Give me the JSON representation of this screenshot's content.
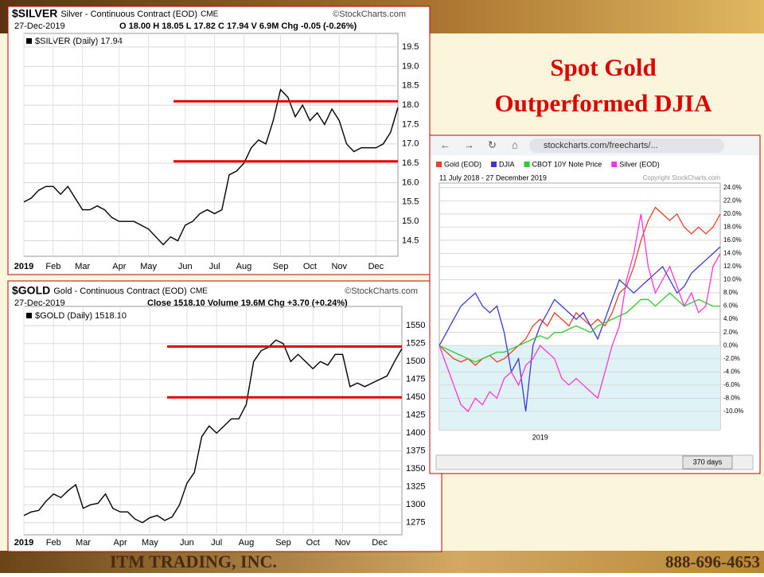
{
  "slide": {
    "title_lines": [
      "Spot Gold",
      "Outperformed  DJIA"
    ],
    "company": "ITM TRADING, INC.",
    "phone": "888-696-4653"
  },
  "chart_data": [
    {
      "type": "line",
      "title": "$SILVER",
      "subtitle": "Silver - Continuous Contract (EOD)",
      "exchange": "CME",
      "source": "©StockCharts.com",
      "date": "27-Dec-2019",
      "quote": "O 18.00  H 18.05  L 17.82  C 17.94  V 6.9M  Chg -0.05 (-0.26%)",
      "categories": [
        "2019",
        null,
        null,
        null,
        "Feb",
        null,
        null,
        null,
        "Mar",
        null,
        null,
        null,
        null,
        "Apr",
        null,
        null,
        null,
        "May",
        null,
        null,
        null,
        null,
        "Jun",
        null,
        null,
        null,
        "Jul",
        null,
        null,
        null,
        "Aug",
        null,
        null,
        null,
        null,
        "Sep",
        null,
        null,
        null,
        "Oct",
        null,
        null,
        null,
        "Nov",
        null,
        null,
        null,
        null,
        "Dec",
        null,
        null,
        null
      ],
      "series": [
        {
          "name": "$SILVER (Daily) 17.94",
          "color": "#000000",
          "values": [
            15.5,
            15.6,
            15.8,
            15.9,
            15.9,
            15.7,
            15.9,
            15.6,
            15.3,
            15.3,
            15.4,
            15.3,
            15.1,
            15.0,
            15.0,
            15.0,
            14.9,
            14.8,
            14.6,
            14.4,
            14.6,
            14.5,
            14.9,
            15.0,
            15.2,
            15.3,
            15.2,
            15.3,
            16.2,
            16.3,
            16.5,
            16.9,
            17.1,
            17.0,
            17.6,
            18.4,
            18.2,
            17.7,
            18.0,
            17.6,
            17.8,
            17.5,
            17.9,
            17.6,
            17.0,
            16.8,
            16.9,
            16.9,
            16.9,
            17.0,
            17.3,
            17.94
          ]
        }
      ],
      "ylim": [
        14.1,
        19.85
      ],
      "yticks": [
        14.5,
        {
          "value": 15,
          "label": "15.0"
        },
        15.5,
        {
          "value": 16,
          "label": "16.0"
        },
        16.5,
        {
          "value": 17,
          "label": "17.0"
        },
        17.5,
        {
          "value": 18,
          "label": "18.0"
        },
        18.5,
        {
          "value": 19,
          "label": "19.0"
        },
        19.5
      ],
      "grid": true,
      "hlines": [
        {
          "value": 18.1,
          "color": "#e00000"
        },
        {
          "value": 16.55,
          "color": "#e00000"
        }
      ]
    },
    {
      "type": "line",
      "title": "$GOLD",
      "subtitle": "Gold - Continuous Contract (EOD)",
      "exchange": "CME",
      "source": "©StockCharts.com",
      "date": "27-Dec-2019",
      "quote": "Close 1518.10  Volume 19.6M  Chg +3.70 (+0.24%)",
      "categories": [
        "2019",
        null,
        null,
        null,
        "Feb",
        null,
        null,
        null,
        "Mar",
        null,
        null,
        null,
        null,
        "Apr",
        null,
        null,
        null,
        "May",
        null,
        null,
        null,
        null,
        "Jun",
        null,
        null,
        null,
        "Jul",
        null,
        null,
        null,
        "Aug",
        null,
        null,
        null,
        null,
        "Sep",
        null,
        null,
        null,
        "Oct",
        null,
        null,
        null,
        "Nov",
        null,
        null,
        null,
        null,
        "Dec",
        null,
        null,
        null
      ],
      "series": [
        {
          "name": "$GOLD (Daily) 1518.10",
          "color": "#000000",
          "values": [
            1285,
            1290,
            1292,
            1305,
            1315,
            1310,
            1320,
            1328,
            1295,
            1300,
            1302,
            1315,
            1295,
            1290,
            1290,
            1280,
            1275,
            1282,
            1285,
            1278,
            1283,
            1300,
            1330,
            1345,
            1395,
            1410,
            1400,
            1410,
            1420,
            1420,
            1440,
            1500,
            1515,
            1520,
            1530,
            1525,
            1500,
            1510,
            1500,
            1490,
            1500,
            1495,
            1510,
            1510,
            1465,
            1470,
            1465,
            1470,
            1475,
            1480,
            1500,
            1518.1
          ]
        }
      ],
      "ylim": [
        1258,
        1577
      ],
      "yticks": [
        1275,
        1300,
        1325,
        1350,
        1375,
        1400,
        1425,
        1450,
        1475,
        1500,
        1525,
        1550
      ],
      "grid": true,
      "hlines": [
        {
          "value": 1521,
          "color": "#e00000"
        },
        {
          "value": 1450,
          "color": "#e00000"
        }
      ]
    },
    {
      "type": "line",
      "url": "stockcharts.com/freecharts/...",
      "date_range": "11 July 2018 - 27 December 2019",
      "copyright": "Copyright StockCharts.com",
      "range_button": "370 days",
      "categories": [
        null,
        null,
        null,
        null,
        null,
        null,
        null,
        null,
        null,
        null,
        null,
        null,
        null,
        null,
        "2019",
        null,
        null,
        null,
        null,
        null,
        null,
        null,
        null,
        null,
        null,
        null,
        null,
        null,
        null,
        null,
        null,
        null,
        null,
        null,
        null,
        null,
        null,
        null,
        null,
        null
      ],
      "series": [
        {
          "name": "Gold (EOD)",
          "color": "#e8402a",
          "values": [
            0,
            -1,
            -2,
            -2.5,
            -2,
            -3,
            -2,
            -1.5,
            -2.5,
            -2,
            -1,
            0,
            1,
            3,
            4,
            3,
            5,
            4,
            3,
            5,
            4,
            3,
            4,
            3,
            5,
            8,
            9,
            12,
            16,
            19,
            21,
            20,
            19,
            20,
            18,
            17,
            18,
            17,
            18,
            20
          ]
        },
        {
          "name": "DJIA",
          "color": "#3a3acf",
          "values": [
            0,
            2,
            4,
            6,
            7,
            8,
            6,
            5,
            6,
            2,
            -4,
            -2,
            -10,
            0,
            3,
            5,
            7,
            6,
            5,
            4,
            5,
            3,
            1,
            4,
            7,
            10,
            9,
            8,
            9,
            10,
            11,
            12,
            10,
            8,
            9,
            11,
            12,
            13,
            14,
            15
          ]
        },
        {
          "name": "CBOT 10Y Note Price",
          "color": "#2ecc2e",
          "values": [
            0,
            -0.5,
            -1,
            -1.5,
            -2,
            -2.5,
            -2,
            -1.5,
            -1,
            -1,
            -0.5,
            0,
            0.5,
            1,
            1.5,
            1,
            2,
            2,
            2.5,
            3,
            2.5,
            2,
            3,
            3.5,
            4,
            4.5,
            5,
            6,
            7,
            7,
            6,
            7,
            8,
            7,
            6,
            6.5,
            7,
            6.5,
            6,
            6
          ]
        },
        {
          "name": "Silver (EOD)",
          "color": "#ff33dd",
          "values": [
            0,
            -3,
            -6,
            -9,
            -10,
            -8,
            -9,
            -7,
            -8,
            -5,
            -4,
            -6,
            -3,
            -2,
            0,
            -1,
            -2,
            -5,
            -6,
            -5,
            -6,
            -7,
            -8,
            -4,
            0,
            3,
            10,
            14,
            20,
            12,
            8,
            10,
            12,
            9,
            6,
            8,
            5,
            6,
            12,
            14
          ]
        }
      ],
      "ylim": [
        -12.8,
        24.7
      ],
      "yticks": [
        {
          "value": -10,
          "label": "-10.0%"
        },
        {
          "value": -8,
          "label": "-8.0%"
        },
        {
          "value": -6,
          "label": "-6.0%"
        },
        {
          "value": -4,
          "label": "-4.0%"
        },
        {
          "value": -2,
          "label": "-2.0%"
        },
        {
          "value": 0,
          "label": "0.0%"
        },
        {
          "value": 2,
          "label": "2.0%"
        },
        {
          "value": 4,
          "label": "4.0%"
        },
        {
          "value": 6,
          "label": "6.0%"
        },
        {
          "value": 8,
          "label": "8.0%"
        },
        {
          "value": 10,
          "label": "10.0%"
        },
        {
          "value": 12,
          "label": "12.0%"
        },
        {
          "value": 14,
          "label": "14.0%"
        },
        {
          "value": 16,
          "label": "16.0%"
        },
        {
          "value": 18,
          "label": "18.0%"
        },
        {
          "value": 20,
          "label": "20.0%"
        },
        {
          "value": 22,
          "label": "22.0%"
        },
        {
          "value": 24,
          "label": "24.0%"
        }
      ],
      "grid": true
    }
  ]
}
